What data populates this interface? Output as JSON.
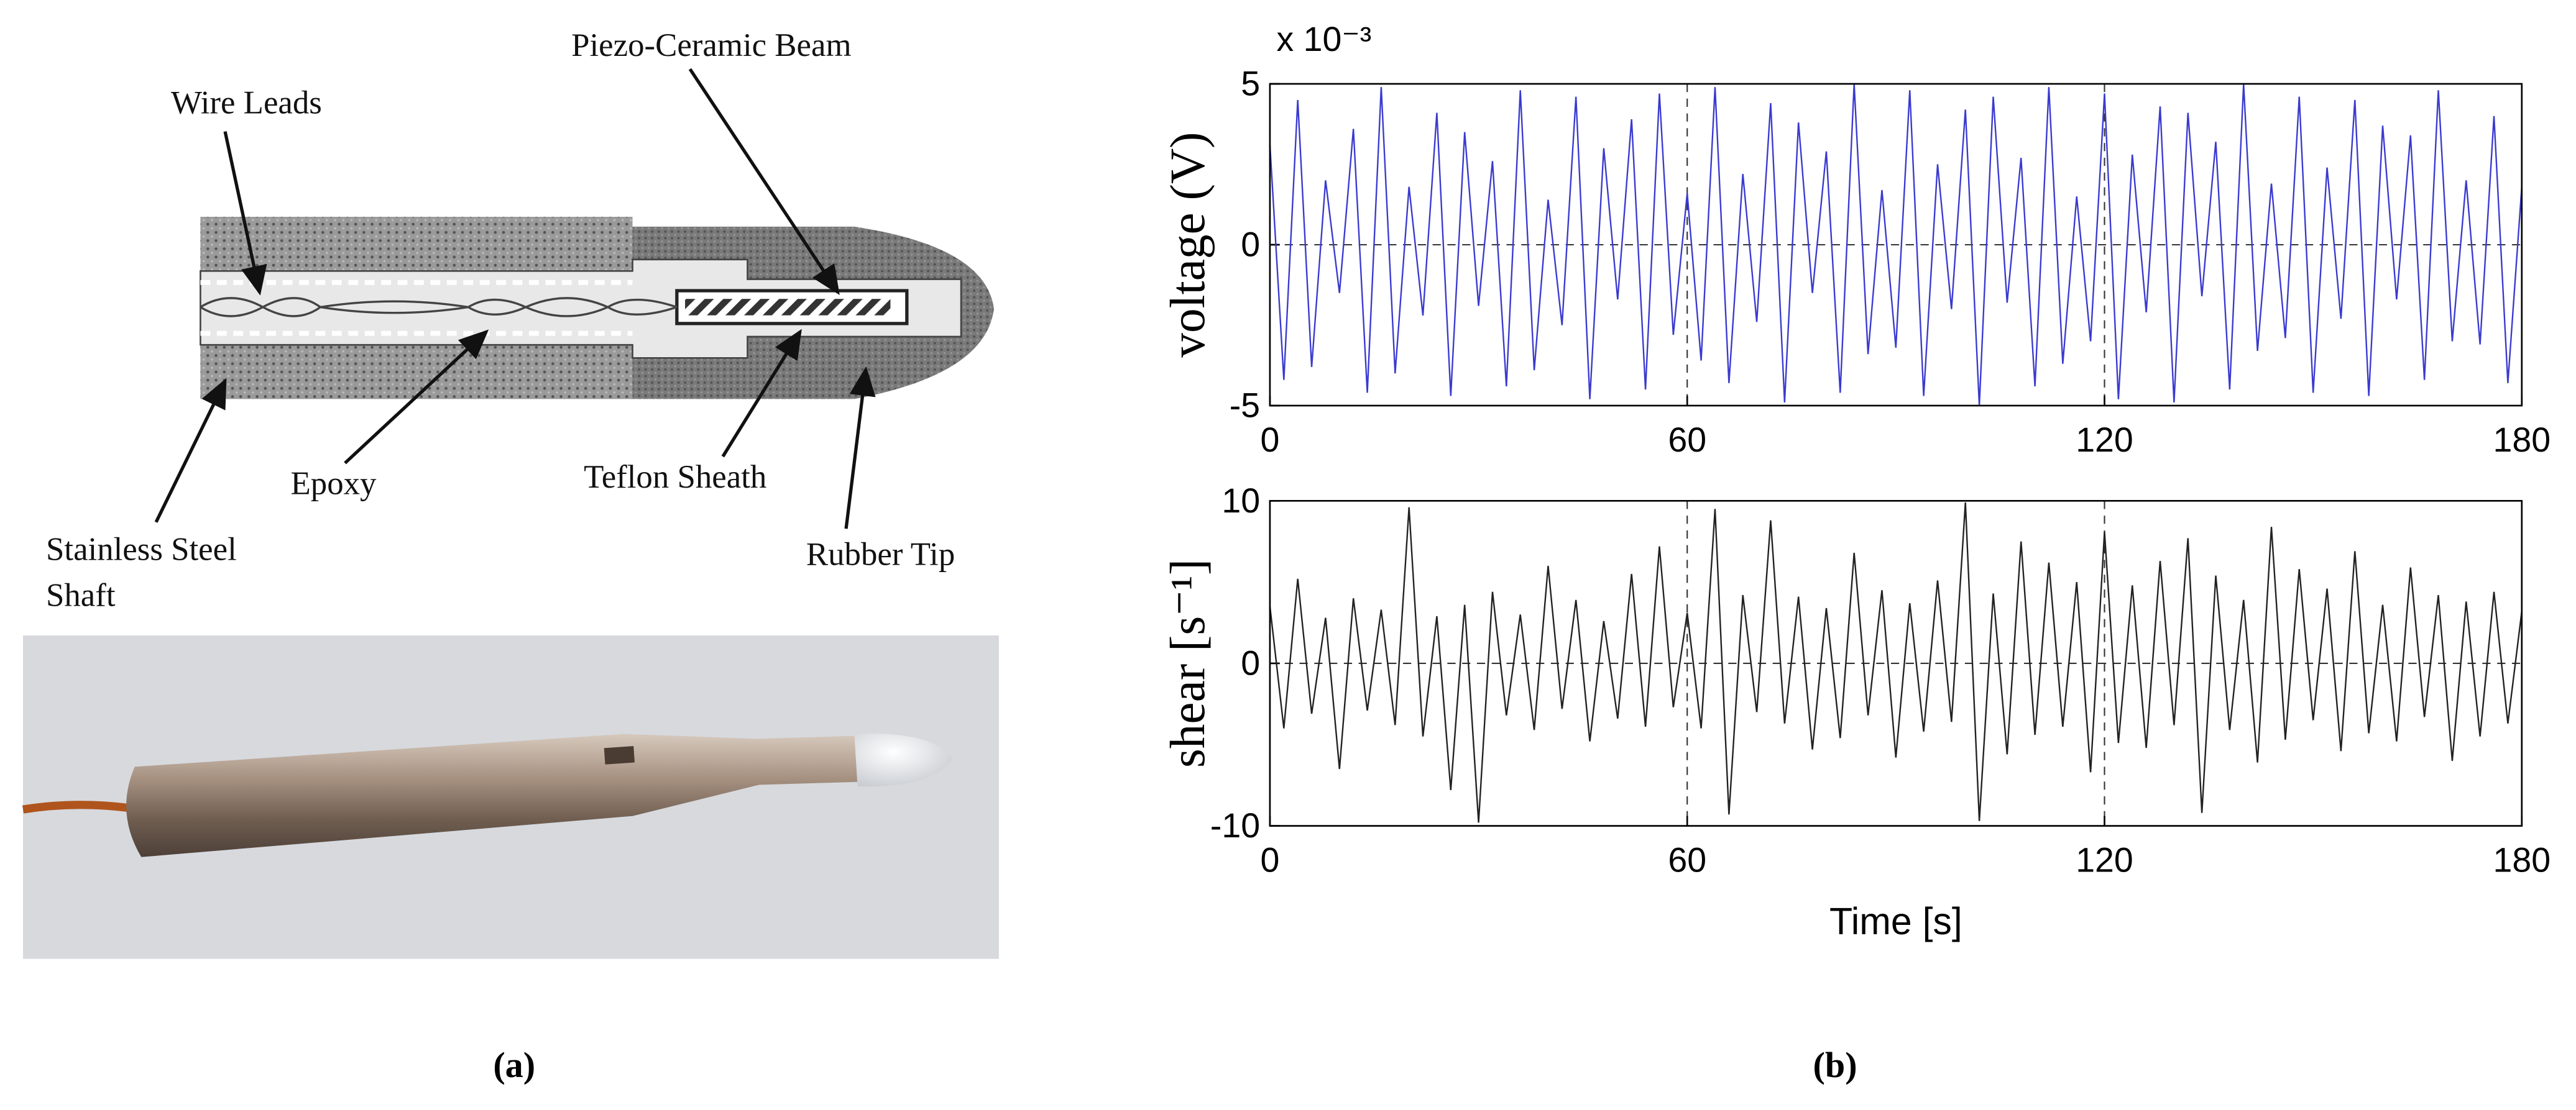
{
  "diagram": {
    "labels": {
      "beam": "Piezo-Ceramic Beam",
      "wires": "Wire Leads",
      "epoxy": "Epoxy",
      "sheath": "Teflon Sheath",
      "shaft_1": "Stainless Steel",
      "shaft_2": "Shaft",
      "tip": "Rubber Tip"
    }
  },
  "captions": [
    "(a)",
    "(b)"
  ],
  "chart_data": [
    {
      "type": "line",
      "ylabel": "voltage (V)",
      "y_multiplier": "x 10⁻³",
      "color": "#3a3ad0",
      "xlim": [
        0,
        180
      ],
      "ylim": [
        -5,
        5
      ],
      "xticks": [
        0,
        60,
        120,
        180
      ],
      "yticks": [
        -5,
        0,
        5
      ],
      "grid": true,
      "x": [
        0,
        2,
        4,
        6,
        8,
        10,
        12,
        14,
        16,
        18,
        20,
        22,
        24,
        26,
        28,
        30,
        32,
        34,
        36,
        38,
        40,
        42,
        44,
        46,
        48,
        50,
        52,
        54,
        56,
        58,
        60,
        62,
        64,
        66,
        68,
        70,
        72,
        74,
        76,
        78,
        80,
        82,
        84,
        86,
        88,
        90,
        92,
        94,
        96,
        98,
        100,
        102,
        104,
        106,
        108,
        110,
        112,
        114,
        116,
        118,
        120,
        122,
        124,
        126,
        128,
        130,
        132,
        134,
        136,
        138,
        140,
        142,
        144,
        146,
        148,
        150,
        152,
        154,
        156,
        158,
        160,
        162,
        164,
        166,
        168,
        170,
        172,
        174,
        176,
        178,
        180
      ],
      "values": [
        3.1,
        -4.2,
        4.5,
        -3.8,
        2.0,
        -1.5,
        3.6,
        -4.6,
        4.9,
        -4.0,
        1.8,
        -2.2,
        4.1,
        -4.7,
        3.5,
        -1.9,
        2.6,
        -4.4,
        4.8,
        -3.9,
        1.4,
        -2.5,
        4.6,
        -4.8,
        3.0,
        -1.7,
        3.9,
        -4.5,
        4.7,
        -2.8,
        1.6,
        -3.6,
        4.9,
        -4.3,
        2.2,
        -2.4,
        4.4,
        -4.9,
        3.8,
        -1.5,
        2.9,
        -4.6,
        5.0,
        -3.4,
        1.7,
        -3.2,
        4.8,
        -4.7,
        2.5,
        -2.0,
        4.2,
        -5.0,
        4.6,
        -1.8,
        2.7,
        -4.4,
        4.9,
        -3.7,
        1.5,
        -3.0,
        4.7,
        -4.8,
        2.8,
        -2.1,
        4.3,
        -4.9,
        4.1,
        -1.6,
        3.2,
        -4.5,
        5.0,
        -3.3,
        1.9,
        -2.9,
        4.6,
        -4.6,
        2.4,
        -2.3,
        4.5,
        -4.7,
        3.7,
        -1.7,
        3.4,
        -4.2,
        4.8,
        -3.0,
        2.0,
        -3.1,
        4.0,
        -4.3,
        1.8
      ]
    },
    {
      "type": "line",
      "ylabel": "shear [s⁻¹]",
      "xlabel": "Time [s]",
      "color": "#222222",
      "xlim": [
        0,
        180
      ],
      "ylim": [
        -10,
        10
      ],
      "xticks": [
        0,
        60,
        120,
        180
      ],
      "yticks": [
        -10,
        0,
        10
      ],
      "grid": true,
      "x": [
        0,
        2,
        4,
        6,
        8,
        10,
        12,
        14,
        16,
        18,
        20,
        22,
        24,
        26,
        28,
        30,
        32,
        34,
        36,
        38,
        40,
        42,
        44,
        46,
        48,
        50,
        52,
        54,
        56,
        58,
        60,
        62,
        64,
        66,
        68,
        70,
        72,
        74,
        76,
        78,
        80,
        82,
        84,
        86,
        88,
        90,
        92,
        94,
        96,
        98,
        100,
        102,
        104,
        106,
        108,
        110,
        112,
        114,
        116,
        118,
        120,
        122,
        124,
        126,
        128,
        130,
        132,
        134,
        136,
        138,
        140,
        142,
        144,
        146,
        148,
        150,
        152,
        154,
        156,
        158,
        160,
        162,
        164,
        166,
        168,
        170,
        172,
        174,
        176,
        178,
        180
      ],
      "values": [
        3.5,
        -4.0,
        5.2,
        -3.1,
        2.8,
        -6.5,
        4.0,
        -2.9,
        3.3,
        -3.8,
        9.6,
        -4.5,
        2.9,
        -7.8,
        3.6,
        -9.8,
        4.4,
        -3.2,
        3.0,
        -4.1,
        6.0,
        -2.8,
        3.9,
        -4.8,
        2.6,
        -3.4,
        5.5,
        -3.9,
        7.2,
        -2.7,
        3.1,
        -4.0,
        9.5,
        -9.3,
        4.2,
        -3.0,
        8.8,
        -3.7,
        4.1,
        -5.3,
        3.4,
        -4.6,
        6.8,
        -3.2,
        4.5,
        -5.8,
        3.7,
        -4.2,
        5.1,
        -3.6,
        9.9,
        -9.7,
        4.3,
        -5.6,
        7.5,
        -4.4,
        6.2,
        -3.9,
        5.0,
        -6.7,
        8.1,
        -4.9,
        4.8,
        -5.2,
        6.3,
        -3.8,
        7.7,
        -9.2,
        5.4,
        -4.1,
        3.9,
        -6.1,
        8.4,
        -4.7,
        5.8,
        -3.5,
        4.6,
        -5.4,
        6.9,
        -4.3,
        3.6,
        -4.8,
        5.9,
        -3.3,
        4.2,
        -6.0,
        3.8,
        -4.5,
        4.4,
        -3.7,
        3.2
      ]
    }
  ]
}
